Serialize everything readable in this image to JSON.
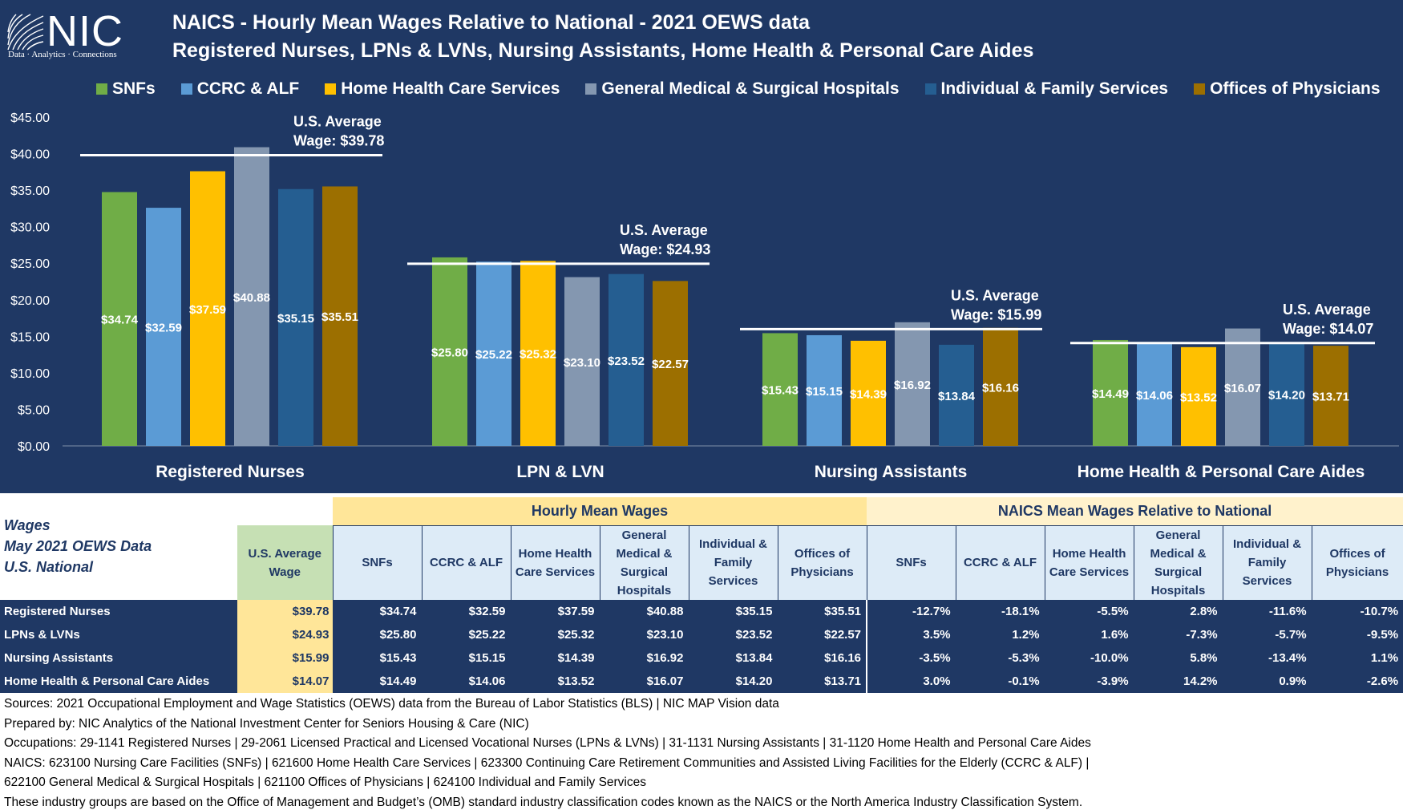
{
  "logo": {
    "wordmark": "NIC",
    "tagline": "Data · Analytics · Connections"
  },
  "title": {
    "line1": "NAICS - Hourly Mean Wages Relative to National - 2021 OEWS data",
    "line2": "Registered Nurses, LPNs & LVNs, Nursing Assistants, Home Health & Personal Care Aides"
  },
  "colors": {
    "background": "#1f3864",
    "series": [
      "#70ad47",
      "#5b9bd5",
      "#ffc000",
      "#8497b0",
      "#255e91",
      "#9c6f00"
    ]
  },
  "chart_data": {
    "type": "bar",
    "ylim": [
      0,
      45
    ],
    "yticks": [
      0,
      5,
      10,
      15,
      20,
      25,
      30,
      35,
      40,
      45
    ],
    "ytick_labels": [
      "$0.00",
      "$5.00",
      "$10.00",
      "$15.00",
      "$20.00",
      "$25.00",
      "$30.00",
      "$35.00",
      "$40.00",
      "$45.00"
    ],
    "legend_position": "top",
    "grid": false,
    "categories": [
      "Registered Nurses",
      "LPN & LVN",
      "Nursing Assistants",
      "Home Health & Personal Care Aides"
    ],
    "series": [
      {
        "name": "SNFs",
        "values": [
          34.74,
          25.8,
          15.43,
          14.49
        ],
        "labels": [
          "$34.74",
          "$25.80",
          "$15.43",
          "$14.49"
        ]
      },
      {
        "name": "CCRC & ALF",
        "values": [
          32.59,
          25.22,
          15.15,
          14.06
        ],
        "labels": [
          "$32.59",
          "$25.22",
          "$15.15",
          "$14.06"
        ]
      },
      {
        "name": "Home Health Care Services",
        "values": [
          37.59,
          25.32,
          14.39,
          13.52
        ],
        "labels": [
          "$37.59",
          "$25.32",
          "$14.39",
          "$13.52"
        ]
      },
      {
        "name": "General Medical & Surgical Hospitals",
        "values": [
          40.88,
          23.1,
          16.92,
          16.07
        ],
        "labels": [
          "$40.88",
          "$23.10",
          "$16.92",
          "$16.07"
        ]
      },
      {
        "name": "Individual & Family Services",
        "values": [
          35.15,
          23.52,
          13.84,
          14.2
        ],
        "labels": [
          "$35.15",
          "$23.52",
          "$13.84",
          "$14.20"
        ]
      },
      {
        "name": "Offices of Physicians",
        "values": [
          35.51,
          22.57,
          16.16,
          13.71
        ],
        "labels": [
          "$35.51",
          "$22.57",
          "$16.16",
          "$13.71"
        ]
      }
    ],
    "reference_lines": [
      {
        "value": 39.78,
        "label_line1": "U.S. Average",
        "label_line2": "Wage: $39.78"
      },
      {
        "value": 24.93,
        "label_line1": "U.S. Average",
        "label_line2": "Wage: $24.93"
      },
      {
        "value": 15.99,
        "label_line1": "U.S. Average",
        "label_line2": "Wage: $15.99"
      },
      {
        "value": 14.07,
        "label_line1": "U.S. Average",
        "label_line2": "Wage: $14.07"
      }
    ]
  },
  "table": {
    "left_header": [
      "Wages",
      "May 2021 OEWS Data",
      "U.S. National"
    ],
    "group_hourly": "Hourly Mean Wages",
    "group_relative": "NAICS Mean Wages Relative to National",
    "us_avg_header": "U.S. Average Wage",
    "col_headers": [
      "SNFs",
      "CCRC & ALF",
      "Home Health Care Services",
      "General Medical & Surgical Hospitals",
      "Individual & Family Services",
      "Offices of Physicians"
    ],
    "rows": [
      {
        "label": "Registered Nurses",
        "us": "$39.78",
        "wages": [
          "$34.74",
          "$32.59",
          "$37.59",
          "$40.88",
          "$35.15",
          "$35.51"
        ],
        "relative": [
          "-12.7%",
          "-18.1%",
          "-5.5%",
          "2.8%",
          "-11.6%",
          "-10.7%"
        ]
      },
      {
        "label": "LPNs & LVNs",
        "us": "$24.93",
        "wages": [
          "$25.80",
          "$25.22",
          "$25.32",
          "$23.10",
          "$23.52",
          "$22.57"
        ],
        "relative": [
          "3.5%",
          "1.2%",
          "1.6%",
          "-7.3%",
          "-5.7%",
          "-9.5%"
        ]
      },
      {
        "label": "Nursing Assistants",
        "us": "$15.99",
        "wages": [
          "$15.43",
          "$15.15",
          "$14.39",
          "$16.92",
          "$13.84",
          "$16.16"
        ],
        "relative": [
          "-3.5%",
          "-5.3%",
          "-10.0%",
          "5.8%",
          "-13.4%",
          "1.1%"
        ]
      },
      {
        "label": "Home Health & Personal Care Aides",
        "us": "$14.07",
        "wages": [
          "$14.49",
          "$14.06",
          "$13.52",
          "$16.07",
          "$14.20",
          "$13.71"
        ],
        "relative": [
          "3.0%",
          "-0.1%",
          "-3.9%",
          "14.2%",
          "0.9%",
          "-2.6%"
        ]
      }
    ]
  },
  "notes": [
    "Sources: 2021 Occupational Employment and Wage Statistics (OEWS) data from the Bureau of Labor Statistics (BLS) | NIC MAP Vision data",
    "Prepared by: NIC Analytics of the National Investment Center for Seniors Housing & Care (NIC)",
    "Occupations: 29-1141 Registered Nurses | 29-2061 Licensed Practical and Licensed Vocational Nurses (LPNs & LVNs) | 31-1131 Nursing Assistants | 31-1120 Home Health and Personal Care Aides",
    "NAICS: 623100 Nursing Care Facilities (SNFs) | 621600 Home Health Care Services | 623300 Continuing Care Retirement Communities and Assisted Living Facilities for the Elderly (CCRC & ALF) |",
    "622100 General Medical & Surgical Hospitals | 621100 Offices of Physicians | 624100 Individual and Family Services",
    "These industry groups are based on the Office of Management and Budget’s (OMB) standard industry classification codes known as the NAICS or the North America Industry Classification System."
  ]
}
